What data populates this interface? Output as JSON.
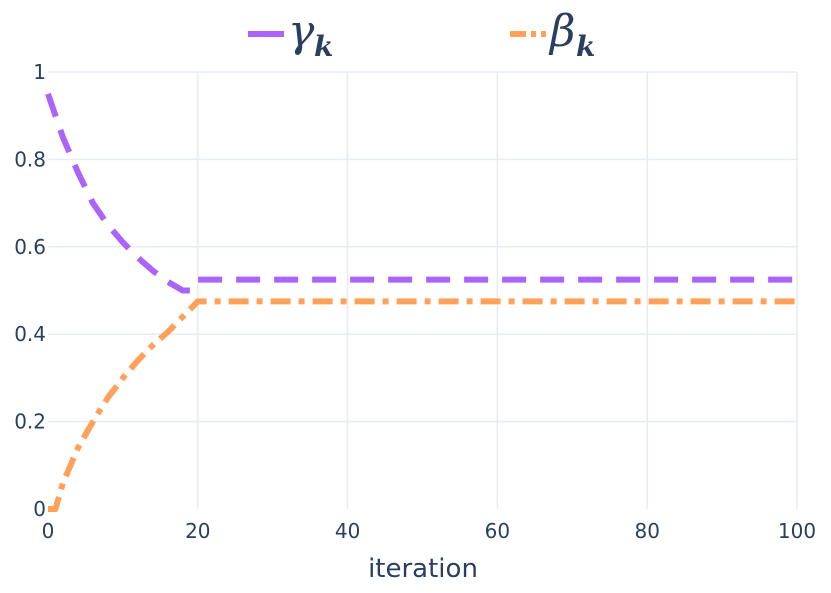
{
  "chart_data": {
    "type": "line",
    "xlabel": "iteration",
    "ylabel": "",
    "xlim": [
      0,
      100
    ],
    "ylim": [
      0,
      1
    ],
    "xticks": [
      0,
      20,
      40,
      60,
      80,
      100
    ],
    "yticks": [
      0,
      0.2,
      0.4,
      0.6,
      0.8,
      1
    ],
    "ytick_labels": [
      "0",
      "0.2",
      "0.4",
      "0.6",
      "0.8",
      "1"
    ],
    "grid": true,
    "legend_position": "top",
    "series": [
      {
        "name_symbol": "γ",
        "name_subscript": "k",
        "color": "#ab63fa",
        "dash": "dash",
        "x": [
          0,
          2,
          4,
          6,
          8,
          10,
          12,
          14,
          16,
          18,
          19,
          20,
          40,
          60,
          80,
          100
        ],
        "y": [
          0.95,
          0.85,
          0.77,
          0.7,
          0.65,
          0.61,
          0.575,
          0.545,
          0.52,
          0.5,
          0.5,
          0.525,
          0.525,
          0.525,
          0.525,
          0.525
        ]
      },
      {
        "name_symbol": "β",
        "name_subscript": "k",
        "color": "#ffa15a",
        "dash": "dashdot",
        "x": [
          0,
          1,
          2,
          4,
          6,
          8,
          10,
          12,
          14,
          16,
          18,
          20,
          40,
          60,
          80,
          100
        ],
        "y": [
          0,
          0,
          0.06,
          0.14,
          0.2,
          0.255,
          0.3,
          0.34,
          0.375,
          0.405,
          0.44,
          0.475,
          0.475,
          0.475,
          0.475,
          0.475
        ]
      }
    ]
  }
}
